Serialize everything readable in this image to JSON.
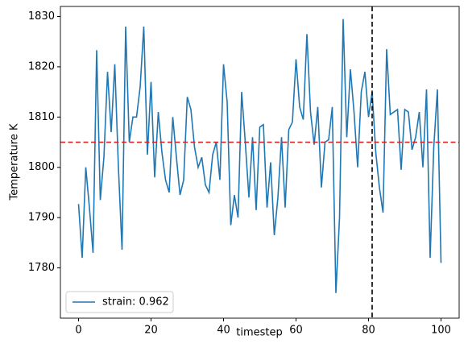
{
  "chart_data": {
    "type": "line",
    "x_label": "timestep",
    "y_label": "Temperature K",
    "x": [
      0,
      1,
      2,
      3,
      4,
      5,
      6,
      7,
      8,
      9,
      10,
      11,
      12,
      13,
      14,
      15,
      16,
      17,
      18,
      19,
      20,
      21,
      22,
      23,
      24,
      25,
      26,
      27,
      28,
      29,
      30,
      31,
      32,
      33,
      34,
      35,
      36,
      37,
      38,
      39,
      40,
      41,
      42,
      43,
      44,
      45,
      46,
      47,
      48,
      49,
      50,
      51,
      52,
      53,
      54,
      55,
      56,
      57,
      58,
      59,
      60,
      61,
      62,
      63,
      64,
      65,
      66,
      67,
      68,
      69,
      70,
      71,
      72,
      73,
      74,
      75,
      76,
      77,
      78,
      79,
      80,
      81,
      82,
      83,
      84,
      85,
      86,
      87,
      88,
      89,
      90,
      91,
      92,
      93,
      94,
      95,
      96,
      97,
      98,
      99,
      100
    ],
    "series": [
      {
        "name": "strain: 0.962",
        "color": "#1f77b4",
        "values": [
          1792.7,
          1782,
          1800,
          1792,
          1783,
          1823.3,
          1793.5,
          1802,
          1819,
          1807,
          1820.5,
          1800,
          1783.6,
          1828,
          1805,
          1810,
          1810,
          1816,
          1828,
          1802.5,
          1817,
          1798,
          1811,
          1803,
          1797.5,
          1795,
          1810,
          1802,
          1794.5,
          1797.5,
          1814,
          1811.5,
          1804,
          1800,
          1802,
          1796.5,
          1795,
          1802.5,
          1805,
          1797.5,
          1820.5,
          1813,
          1788.5,
          1794.5,
          1790,
          1815,
          1805,
          1794,
          1806,
          1791.5,
          1808,
          1808.5,
          1792,
          1801,
          1786.5,
          1794,
          1806,
          1792,
          1807.5,
          1809,
          1821.5,
          1812,
          1809.5,
          1826.5,
          1811,
          1804.5,
          1812,
          1796,
          1805,
          1805.5,
          1812,
          1775,
          1790,
          1829.5,
          1806,
          1819.5,
          1811,
          1800,
          1815,
          1819,
          1810,
          1815,
          1803,
          1796,
          1791,
          1823.5,
          1810.5,
          1811,
          1811.5,
          1799.5,
          1811.5,
          1811,
          1803.5,
          1806,
          1811,
          1800,
          1815.5,
          1782,
          1804,
          1815.5,
          1781
        ]
      }
    ],
    "hline": {
      "value": 1805,
      "color": "#d62728"
    },
    "vline": {
      "value": 81,
      "color": "#000000"
    },
    "xlim": [
      -5,
      105
    ],
    "ylim": [
      1770,
      1832
    ],
    "xticks": [
      0,
      20,
      40,
      60,
      80,
      100
    ],
    "yticks": [
      1780,
      1790,
      1800,
      1810,
      1820,
      1830
    ],
    "legend": "lower left"
  }
}
